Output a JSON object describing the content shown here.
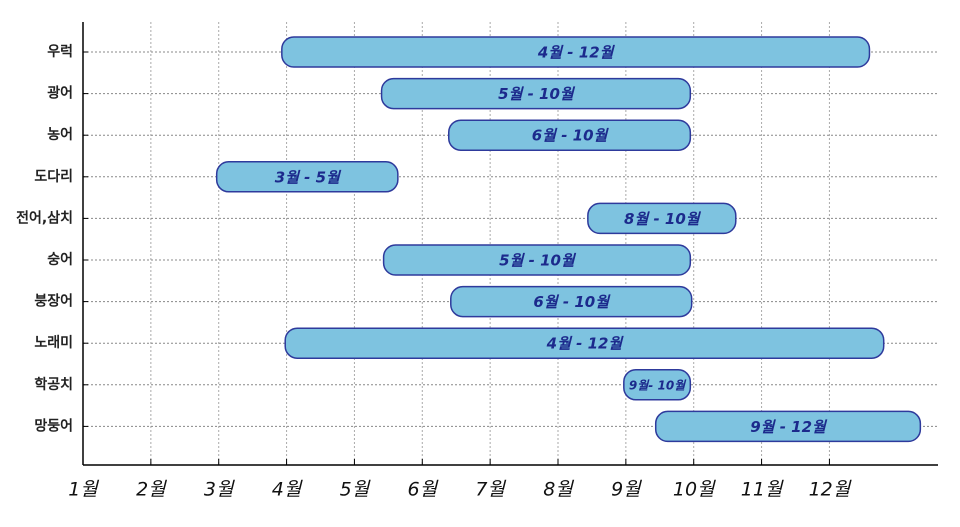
{
  "chart_data": {
    "type": "range-bar",
    "categories": [
      "우럭",
      "광어",
      "농어",
      "도다리",
      "전어,삼치",
      "숭어",
      "붕장어",
      "노래미",
      "학공치",
      "망둥어"
    ],
    "start": [
      3.93,
      5.4,
      6.39,
      2.97,
      8.44,
      5.43,
      6.42,
      3.98,
      8.97,
      9.44
    ],
    "end": [
      12.59,
      9.95,
      9.95,
      5.64,
      10.62,
      9.95,
      9.97,
      12.8,
      9.95,
      13.34
    ],
    "value_labels": [
      "4월 - 12월",
      "5월 - 10월",
      "6월 - 10월",
      "3월 - 5월",
      "8월 - 10월",
      "5월 - 10월",
      "6월 - 10월",
      "4월 - 12월",
      "9월- 10월",
      "9월 - 12월"
    ],
    "color": "#7ec3e0",
    "edge_color": "#2e3a9c",
    "xlim": [
      1,
      13.6
    ],
    "xticks": [
      {
        "value": 1,
        "label": "1월"
      },
      {
        "value": 2,
        "label": "2월"
      },
      {
        "value": 3,
        "label": "3월"
      },
      {
        "value": 4,
        "label": "4월"
      },
      {
        "value": 5,
        "label": "5월"
      },
      {
        "value": 6,
        "label": "6월"
      },
      {
        "value": 7,
        "label": "7월"
      },
      {
        "value": 8,
        "label": "8월"
      },
      {
        "value": 9,
        "label": "9월"
      },
      {
        "value": 10,
        "label": "10월"
      },
      {
        "value": 11,
        "label": "11월"
      },
      {
        "value": 12,
        "label": "12월"
      }
    ],
    "grid": true
  }
}
